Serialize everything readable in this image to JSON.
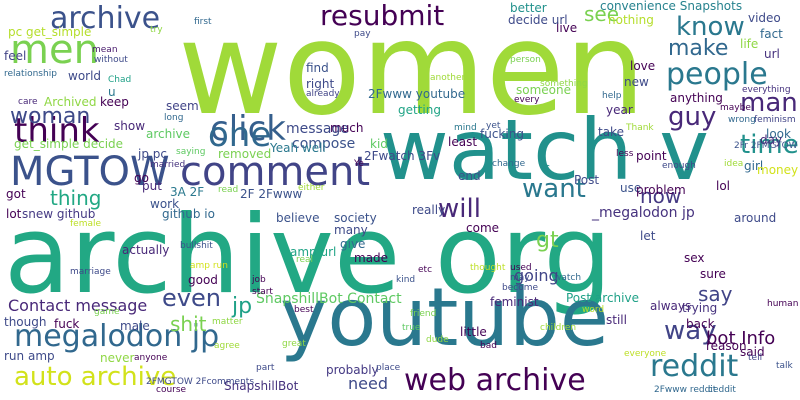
{
  "words": [
    {
      "text": "women",
      "color": "#a0da39"
    },
    {
      "text": "watch v",
      "color": "#21918c"
    },
    {
      "text": "archive org",
      "color": "#22a884"
    },
    {
      "text": "youtube",
      "color": "#2a788e"
    },
    {
      "text": "MGTOW",
      "color": "#3b528b"
    },
    {
      "text": "comment",
      "color": "#414487"
    },
    {
      "text": "men",
      "color": "#7ad151"
    },
    {
      "text": "archive",
      "color": "#3b528b"
    },
    {
      "text": "click",
      "color": "#355f8d"
    },
    {
      "text": "resubmit",
      "color": "#440154"
    },
    {
      "text": "think",
      "color": "#440154"
    },
    {
      "text": "one",
      "color": "#31688e"
    },
    {
      "text": "people",
      "color": "#2a788e"
    },
    {
      "text": "megalodon jp",
      "color": "#31688e"
    },
    {
      "text": "web archive",
      "color": "#440154"
    },
    {
      "text": "reddit",
      "color": "#2a788e"
    },
    {
      "text": "auto archive",
      "color": "#d2e21b"
    },
    {
      "text": "know",
      "color": "#2a788e"
    },
    {
      "text": "man",
      "color": "#482878"
    },
    {
      "text": "make",
      "color": "#31688e"
    },
    {
      "text": "guy",
      "color": "#482878"
    },
    {
      "text": "time",
      "color": "#21918c"
    },
    {
      "text": "woman",
      "color": "#3e4a89"
    },
    {
      "text": "thing",
      "color": "#22a884"
    },
    {
      "text": "want",
      "color": "#2a788e"
    },
    {
      "text": "will",
      "color": "#482878"
    },
    {
      "text": "gt",
      "color": "#7ad151"
    },
    {
      "text": "even",
      "color": "#3e4a89"
    },
    {
      "text": "see",
      "color": "#7ad151"
    },
    {
      "text": "way",
      "color": "#414487"
    },
    {
      "text": "now",
      "color": "#443983"
    },
    {
      "text": "say",
      "color": "#414487"
    },
    {
      "text": "jp",
      "color": "#1fa187"
    },
    {
      "text": "shit",
      "color": "#7ad151"
    },
    {
      "text": "bot Info",
      "color": "#440154"
    },
    {
      "text": "message",
      "color": "#3e4a89"
    },
    {
      "text": "compose",
      "color": "#3b528b"
    },
    {
      "text": "SnapshillBot Contact",
      "color": "#5ec962"
    },
    {
      "text": "Contact message",
      "color": "#482878"
    },
    {
      "text": "_megalodon jp",
      "color": "#46327e"
    },
    {
      "text": "going",
      "color": "#414487"
    },
    {
      "text": "need",
      "color": "#3e4a89"
    },
    {
      "text": "probably",
      "color": "#443983"
    },
    {
      "text": "SnapshillBot",
      "color": "#46327e"
    },
    {
      "text": "2Fwatch 3Fv",
      "color": "#3e4a89"
    },
    {
      "text": "2Fwww youtube",
      "color": "#31688e"
    },
    {
      "text": "Yeah well",
      "color": "#2a788e"
    },
    {
      "text": "find",
      "color": "#3b528b"
    },
    {
      "text": "right",
      "color": "#3e4a89"
    },
    {
      "text": "already",
      "color": "#414487"
    },
    {
      "text": "much",
      "color": "#440154"
    },
    {
      "text": "kid",
      "color": "#5ec962"
    },
    {
      "text": "getting",
      "color": "#20a486"
    },
    {
      "text": "someone",
      "color": "#7ad151"
    },
    {
      "text": "every",
      "color": "#440154"
    },
    {
      "text": "better",
      "color": "#21918c"
    },
    {
      "text": "live",
      "color": "#440154"
    },
    {
      "text": "decide url",
      "color": "#3e4a89"
    },
    {
      "text": "nothing",
      "color": "#b5de2b"
    },
    {
      "text": "convenience Snapshots",
      "color": "#26828e"
    },
    {
      "text": "video",
      "color": "#3e4a89"
    },
    {
      "text": "fact",
      "color": "#31688e"
    },
    {
      "text": "life",
      "color": "#8fd744"
    },
    {
      "text": "url",
      "color": "#46327e"
    },
    {
      "text": "anything",
      "color": "#440154"
    },
    {
      "text": "maybe",
      "color": "#440154"
    },
    {
      "text": "lol",
      "color": "#440154"
    },
    {
      "text": "look",
      "color": "#31688e"
    },
    {
      "text": "day",
      "color": "#482878"
    },
    {
      "text": "feminism",
      "color": "#414487"
    },
    {
      "text": "everything",
      "color": "#46327e"
    },
    {
      "text": "2Fr 2FMGTOW",
      "color": "#3b528b"
    },
    {
      "text": "girl",
      "color": "#31688e"
    },
    {
      "text": "money",
      "color": "#d2e21b"
    },
    {
      "text": "around",
      "color": "#3e4a89"
    },
    {
      "text": "pc get_simple",
      "color": "#b5de2b"
    },
    {
      "text": "feel",
      "color": "#414487"
    },
    {
      "text": "relationship",
      "color": "#31688e"
    },
    {
      "text": "mean",
      "color": "#481a6c"
    },
    {
      "text": "without",
      "color": "#3e4a89"
    },
    {
      "text": "world",
      "color": "#3e4a89"
    },
    {
      "text": "Chad",
      "color": "#1fa187"
    },
    {
      "text": "u",
      "color": "#2a788e"
    },
    {
      "text": "keep",
      "color": "#440154"
    },
    {
      "text": "care",
      "color": "#482878"
    },
    {
      "text": "Archived",
      "color": "#8fd744"
    },
    {
      "text": "seem",
      "color": "#414487"
    },
    {
      "text": "long",
      "color": "#31688e"
    },
    {
      "text": "archive",
      "color": "#5ec962"
    },
    {
      "text": "show",
      "color": "#482878"
    },
    {
      "text": "jp pc",
      "color": "#3e4a89"
    },
    {
      "text": "saying",
      "color": "#5ec962"
    },
    {
      "text": "removed",
      "color": "#7ad151"
    },
    {
      "text": "get_simple decide",
      "color": "#7ad151"
    },
    {
      "text": "married",
      "color": "#46327e"
    },
    {
      "text": "got",
      "color": "#440154"
    },
    {
      "text": "lot",
      "color": "#440154"
    },
    {
      "text": "snew github",
      "color": "#443983"
    },
    {
      "text": "go",
      "color": "#440154"
    },
    {
      "text": "work",
      "color": "#3b528b"
    },
    {
      "text": "put",
      "color": "#482878"
    },
    {
      "text": "3A 2F",
      "color": "#2a788e"
    },
    {
      "text": "github io",
      "color": "#31688e"
    },
    {
      "text": "2F 2Fwww",
      "color": "#3b528b"
    },
    {
      "text": "believe",
      "color": "#3b528b"
    },
    {
      "text": "society",
      "color": "#3b528b"
    },
    {
      "text": "many",
      "color": "#3e4a89"
    },
    {
      "text": "give",
      "color": "#31688e"
    },
    {
      "text": "really",
      "color": "#3e4a89"
    },
    {
      "text": "come",
      "color": "#440154"
    },
    {
      "text": "Post",
      "color": "#3e4a89"
    },
    {
      "text": "use",
      "color": "#3b528b"
    },
    {
      "text": "problem",
      "color": "#440154"
    },
    {
      "text": "let",
      "color": "#3e4a89"
    },
    {
      "text": "feminist",
      "color": "#482878"
    },
    {
      "text": "Post archive",
      "color": "#1fa187"
    },
    {
      "text": "trying",
      "color": "#46327e"
    },
    {
      "text": "back",
      "color": "#440154"
    },
    {
      "text": "sure",
      "color": "#440154"
    },
    {
      "text": "fucking",
      "color": "#3b528b"
    },
    {
      "text": "end",
      "color": "#3b528b"
    },
    {
      "text": "s",
      "color": "#21918c"
    },
    {
      "text": "point",
      "color": "#440154"
    },
    {
      "text": "take",
      "color": "#3e4a89"
    },
    {
      "text": "year",
      "color": "#482878"
    },
    {
      "text": "love",
      "color": "#440154"
    },
    {
      "text": "help",
      "color": "#31688e"
    },
    {
      "text": "new",
      "color": "#3e4a89"
    },
    {
      "text": "mind",
      "color": "#2a788e"
    },
    {
      "text": "least",
      "color": "#440154"
    },
    {
      "text": "yet",
      "color": "#3b528b"
    },
    {
      "text": "Thank",
      "color": "#a0da39"
    },
    {
      "text": "enough",
      "color": "#3e4a89"
    },
    {
      "text": "idea",
      "color": "#a0da39"
    },
    {
      "text": "wrong",
      "color": "#31688e"
    },
    {
      "text": "less",
      "color": "#440154"
    },
    {
      "text": "change",
      "color": "#31688e"
    },
    {
      "text": "person",
      "color": "#7ad151"
    },
    {
      "text": "something",
      "color": "#8fd744"
    },
    {
      "text": "another",
      "color": "#a0da39"
    },
    {
      "text": "first",
      "color": "#31688e"
    },
    {
      "text": "try",
      "color": "#8fd744"
    },
    {
      "text": "pay",
      "color": "#3e4a89"
    },
    {
      "text": "sex",
      "color": "#440154"
    },
    {
      "text": "Ye",
      "color": "#440154"
    },
    {
      "text": "either",
      "color": "#a0da39"
    },
    {
      "text": "read",
      "color": "#7ad151"
    },
    {
      "text": "amp url",
      "color": "#20a486"
    },
    {
      "text": "job",
      "color": "#440154"
    },
    {
      "text": "start",
      "color": "#440154"
    },
    {
      "text": "female",
      "color": "#bddf26"
    },
    {
      "text": "actually",
      "color": "#482878"
    },
    {
      "text": "bullshit",
      "color": "#3b528b"
    },
    {
      "text": "amp run",
      "color": "#d2e21b"
    },
    {
      "text": "good",
      "color": "#440154"
    },
    {
      "text": "real",
      "color": "#7ad151"
    },
    {
      "text": "made",
      "color": "#440154"
    },
    {
      "text": "etc",
      "color": "#440154"
    },
    {
      "text": "kind",
      "color": "#3b528b"
    },
    {
      "text": "used",
      "color": "#440154"
    },
    {
      "text": "may",
      "color": "#3e4a89"
    },
    {
      "text": "thought",
      "color": "#bddf26"
    },
    {
      "text": "become",
      "color": "#3e4a89"
    },
    {
      "text": "watch",
      "color": "#31688e"
    },
    {
      "text": "friend",
      "color": "#7ad151"
    },
    {
      "text": "marriage",
      "color": "#3e4a89"
    },
    {
      "text": "game",
      "color": "#7ad151"
    },
    {
      "text": "best",
      "color": "#440154"
    },
    {
      "text": "fuck",
      "color": "#440154"
    },
    {
      "text": "though",
      "color": "#3e4a89"
    },
    {
      "text": "male",
      "color": "#3e4a89"
    },
    {
      "text": "matter",
      "color": "#8fd744"
    },
    {
      "text": "still",
      "color": "#482878"
    },
    {
      "text": "little",
      "color": "#440154"
    },
    {
      "text": "true",
      "color": "#5ec962"
    },
    {
      "text": "dude",
      "color": "#8fd744"
    },
    {
      "text": "children",
      "color": "#a0da39"
    },
    {
      "text": "word",
      "color": "#b5de2b"
    },
    {
      "text": "always",
      "color": "#482878"
    },
    {
      "text": "reason",
      "color": "#440154"
    },
    {
      "text": "said",
      "color": "#440154"
    },
    {
      "text": "tell",
      "color": "#414487"
    },
    {
      "text": "human",
      "color": "#440154"
    },
    {
      "text": "run amp",
      "color": "#3e4a89"
    },
    {
      "text": "never",
      "color": "#8fd744"
    },
    {
      "text": "anyone",
      "color": "#440154"
    },
    {
      "text": "agree",
      "color": "#a0da39"
    },
    {
      "text": "great",
      "color": "#8fd744"
    },
    {
      "text": "bad",
      "color": "#440154"
    },
    {
      "text": "place",
      "color": "#3e4a89"
    },
    {
      "text": "part",
      "color": "#3e4a89"
    },
    {
      "text": "everyone",
      "color": "#bddf26"
    },
    {
      "text": "talk",
      "color": "#3b528b"
    },
    {
      "text": "course",
      "color": "#440154"
    },
    {
      "text": "2FMGTOW 2Fcomments",
      "color": "#3e4a89"
    },
    {
      "text": "2Fwww reddit",
      "color": "#31688e"
    },
    {
      "text": "ceddit",
      "color": "#31688e"
    }
  ]
}
